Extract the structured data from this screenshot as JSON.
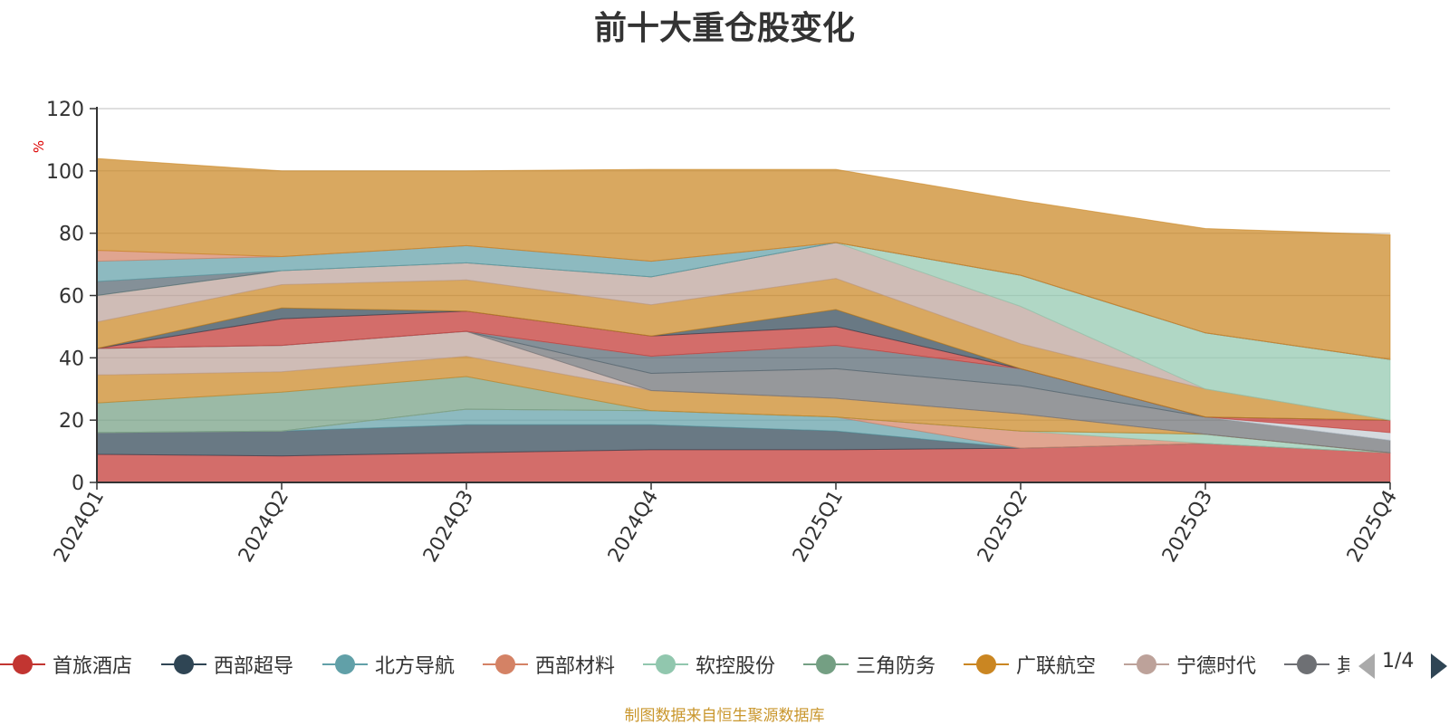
{
  "chart_data": {
    "type": "area",
    "stacked": true,
    "title": "前十大重仓股变化",
    "ylabel": "%",
    "ylim": [
      0,
      120
    ],
    "yticks": [
      "0",
      "20",
      "40",
      "60",
      "80",
      "100",
      "120"
    ],
    "grid": true,
    "categories": [
      "2024Q1",
      "2024Q2",
      "2024Q3",
      "2024Q4",
      "2025Q1",
      "2025Q2",
      "2025Q3",
      "2025Q4"
    ],
    "series": [
      {
        "name": "首旅酒店",
        "color": "#c23531",
        "values": [
          9,
          8.5,
          9.5,
          10.5,
          10.5,
          11,
          12.5,
          9.5
        ]
      },
      {
        "name": "西部超导",
        "color": "#2f4554",
        "values": [
          7,
          8,
          9,
          8,
          6,
          0,
          0,
          0
        ]
      },
      {
        "name": "北方导航",
        "color": "#61a0a8",
        "values": [
          0,
          0,
          5,
          4.5,
          4.5,
          0,
          0,
          0
        ]
      },
      {
        "name": "西部材料",
        "color": "#d48265",
        "values": [
          0,
          0,
          0,
          0,
          0,
          5.5,
          0,
          0
        ]
      },
      {
        "name": "软控股份",
        "color": "#91c7ae",
        "values": [
          0,
          0,
          0,
          0,
          0,
          0,
          3,
          0
        ]
      },
      {
        "name": "三角防务",
        "color": "#749f83",
        "values": [
          9.5,
          12.5,
          10.5,
          0,
          0,
          0,
          0,
          0
        ]
      },
      {
        "name": "广联航空",
        "color": "#ca8622",
        "values": [
          9,
          6.5,
          6.5,
          6.5,
          6,
          5.5,
          0,
          0
        ]
      },
      {
        "name": "宁德时代",
        "color": "#bda29a",
        "values": [
          8.5,
          8.5,
          8,
          0,
          0,
          0,
          0,
          0
        ]
      },
      {
        "name": "",
        "color": "#6e7074",
        "values": [
          0,
          0,
          0,
          5.5,
          9.5,
          9,
          5.5,
          4
        ]
      },
      {
        "name": "",
        "color": "#546570",
        "values": [
          0,
          0,
          0,
          5.5,
          7.5,
          5.5,
          0,
          0
        ]
      },
      {
        "name": "",
        "color": "#c4ccd3",
        "values": [
          0,
          0,
          0,
          0,
          0,
          0,
          0,
          2.5
        ]
      },
      {
        "name": "",
        "color": "#c23531",
        "values": [
          0,
          8.5,
          6.5,
          6.5,
          6,
          0,
          0,
          4
        ]
      },
      {
        "name": "",
        "color": "#2f4554",
        "values": [
          0,
          3.5,
          0,
          0,
          5.5,
          0,
          0,
          0
        ]
      },
      {
        "name": "",
        "color": "#ca8622",
        "values": [
          8.5,
          7.5,
          10,
          10,
          10,
          8,
          9,
          0
        ]
      },
      {
        "name": "",
        "color": "#bda29a",
        "values": [
          8.5,
          4.5,
          5.5,
          9,
          11.5,
          12,
          0,
          0
        ]
      },
      {
        "name": "",
        "color": "#91c7ae",
        "values": [
          0,
          0,
          0,
          0,
          0,
          10,
          18,
          19.5
        ]
      },
      {
        "name": "",
        "color": "#546570",
        "values": [
          4.5,
          0,
          0,
          0,
          0,
          0,
          0,
          0
        ]
      },
      {
        "name": "",
        "color": "#61a0a8",
        "values": [
          6.5,
          4.5,
          5.5,
          5,
          0,
          0,
          0,
          0
        ]
      },
      {
        "name": "",
        "color": "#d48265",
        "values": [
          3.5,
          0,
          0,
          0,
          0,
          0,
          0,
          0
        ]
      },
      {
        "name": "",
        "color": "#ca8622",
        "values": [
          29.5,
          27.5,
          24,
          29.5,
          23.5,
          24,
          33.5,
          40
        ]
      }
    ]
  },
  "legend": {
    "items": [
      {
        "name": "首旅酒店",
        "color": "#c23531"
      },
      {
        "name": "西部超导",
        "color": "#2f4554"
      },
      {
        "name": "北方导航",
        "color": "#61a0a8"
      },
      {
        "name": "西部材料",
        "color": "#d48265"
      },
      {
        "name": "软控股份",
        "color": "#91c7ae"
      },
      {
        "name": "三角防务",
        "color": "#749f83"
      },
      {
        "name": "广联航空",
        "color": "#ca8622"
      },
      {
        "name": "宁德时代",
        "color": "#bda29a"
      },
      {
        "name": "其",
        "color": "#6e7074"
      }
    ],
    "page": "1/4"
  },
  "source_note": "制图数据来自恒生聚源数据库"
}
